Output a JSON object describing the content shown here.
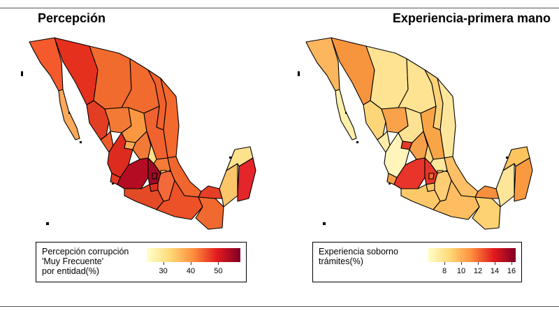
{
  "panels": [
    {
      "title": "Percepción",
      "legend": {
        "title_lines": [
          "Percepción corrupción",
          "'Muy Frecuente'",
          "por entidad(%)"
        ],
        "range": [
          24,
          58
        ],
        "ticks": [
          30,
          40,
          50
        ],
        "colors": [
          "#FFFFCC",
          "#FED976",
          "#FD8D3C",
          "#E31A1C",
          "#800026"
        ]
      }
    },
    {
      "title": "Experiencia-primera mano",
      "legend": {
        "title_lines": [
          "Experiencia soborno",
          "trámites(%)"
        ],
        "range": [
          6,
          16.5
        ],
        "ticks": [
          8,
          10,
          12,
          14,
          16
        ],
        "colors": [
          "#FFFFCC",
          "#FED976",
          "#FD8D3C",
          "#E31A1C",
          "#800026"
        ]
      }
    }
  ],
  "map_colors": {
    "left": {
      "BC": "#F45A2C",
      "BCS": "#FCA95A",
      "SON": "#E6301E",
      "CHIH": "#F16A2E",
      "COAH": "#F16A2E",
      "NL": "#F0612C",
      "TAMPS": "#F4692E",
      "SIN": "#E33D23",
      "DGO": "#F37A34",
      "ZAC": "#F99840",
      "SLP": "#F06230",
      "NAY": "#EE5A2A",
      "AGS": "#FCAA55",
      "JAL": "#DD2C1F",
      "GTO": "#F07A36",
      "QRO": "#FDE08A",
      "HGO": "#F47C38",
      "COL": "#E43A22",
      "MICH": "#B40C22",
      "EDOMEX": "#9E0A25",
      "CDMX": "#A30C25",
      "TLAX": "#FBCD72",
      "MOR": "#E0301F",
      "PUE": "#F4693A",
      "VER": "#F0662E",
      "GRO": "#E34A25",
      "OAX": "#EC5128",
      "CHIS": "#F06A30",
      "TAB": "#E53F26",
      "CAMP": "#FBC56A",
      "YUC": "#FDE28C",
      "QROO": "#E4262A"
    },
    "right": {
      "BC": "#FBB65E",
      "BCS": "#FEEFAA",
      "SON": "#F7953E",
      "CHIH": "#FEE392",
      "COAH": "#FEE392",
      "NL": "#FDD278",
      "TAMPS": "#FEE79C",
      "SIN": "#FDD67A",
      "DGO": "#F9A24A",
      "ZAC": "#FEE294",
      "SLP": "#F8A548",
      "NAY": "#FEEEAA",
      "AGS": "#E03A2A",
      "JAL": "#FFF4BA",
      "GTO": "#F7A04A",
      "QRO": "#FDD782",
      "HGO": "#FEE79C",
      "COL": "#F99E45",
      "MICH": "#E8342A",
      "EDOMEX": "#E5352A",
      "CDMX": "#F06A32",
      "TLAX": "#FDCB6E",
      "MOR": "#FDC266",
      "PUE": "#FECD74",
      "VER": "#FDC066",
      "GRO": "#FDC86A",
      "OAX": "#FDBD60",
      "CHIS": "#FDD272",
      "TAB": "#F7903E",
      "CAMP": "#FEE59A",
      "YUC": "#FDC460",
      "QROO": "#F99A42"
    }
  }
}
